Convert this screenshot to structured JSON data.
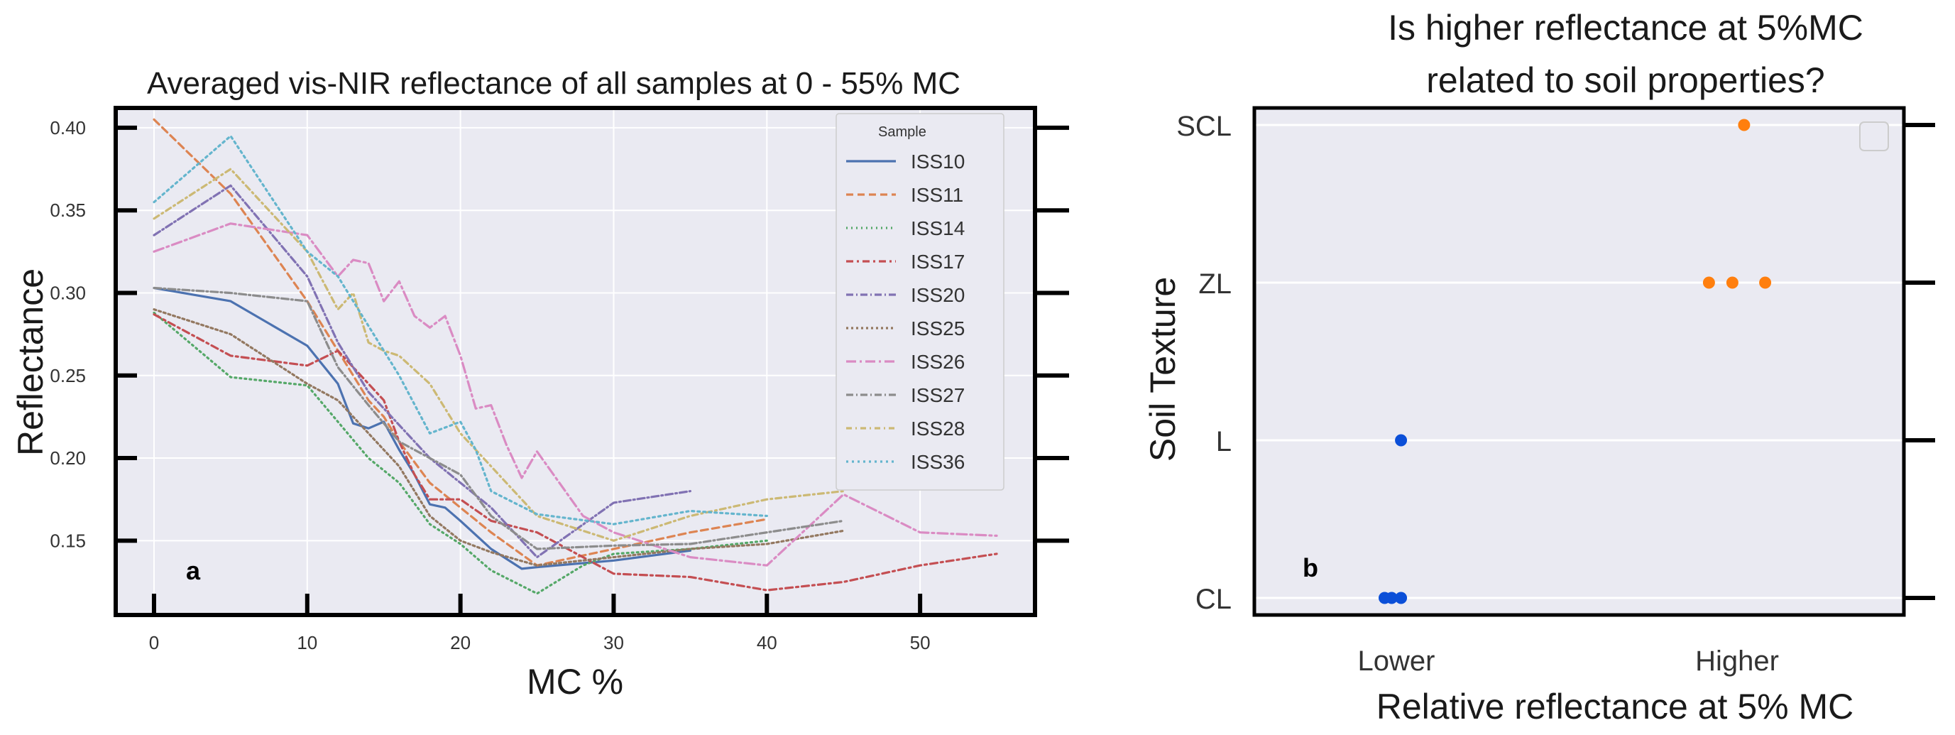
{
  "chart_data": [
    {
      "type": "line",
      "panel_label": "a",
      "title": "Averaged vis-NIR reflectance of all samples at 0 - 55% MC",
      "xlabel": "MC %",
      "ylabel": "Reflectance",
      "xlim": [
        -2.5,
        57.5
      ],
      "ylim": [
        0.105,
        0.412
      ],
      "xticks": [
        0,
        10,
        20,
        30,
        40,
        50
      ],
      "yticks": [
        0.15,
        0.2,
        0.25,
        0.3,
        0.35,
        0.4
      ],
      "ytick_labels": [
        "0.15",
        "0.20",
        "0.25",
        "0.30",
        "0.35",
        "0.40"
      ],
      "grid": true,
      "legend": {
        "title": "Sample",
        "position": "top-right"
      },
      "series": [
        {
          "name": "ISS10",
          "color": "#4c72b0",
          "dash": "solid",
          "x": [
            0,
            5,
            10,
            12,
            13,
            14,
            15,
            16,
            17,
            18,
            19,
            20,
            22,
            24,
            25,
            30,
            35
          ],
          "y": [
            0.303,
            0.295,
            0.268,
            0.245,
            0.221,
            0.218,
            0.222,
            0.205,
            0.19,
            0.172,
            0.17,
            0.162,
            0.145,
            0.133,
            0.134,
            0.138,
            0.144
          ]
        },
        {
          "name": "ISS11",
          "color": "#dd8452",
          "dash": "10,6",
          "x": [
            0,
            5,
            10,
            12,
            14,
            15,
            16,
            18,
            20,
            22,
            25,
            30,
            35,
            40
          ],
          "y": [
            0.405,
            0.36,
            0.295,
            0.265,
            0.235,
            0.225,
            0.21,
            0.185,
            0.17,
            0.155,
            0.135,
            0.145,
            0.155,
            0.163
          ]
        },
        {
          "name": "ISS14",
          "color": "#55a868",
          "dash": "2,5",
          "x": [
            0,
            5,
            10,
            12,
            14,
            16,
            18,
            20,
            22,
            25,
            28,
            30,
            35,
            40
          ],
          "y": [
            0.288,
            0.249,
            0.244,
            0.222,
            0.2,
            0.185,
            0.16,
            0.148,
            0.132,
            0.118,
            0.135,
            0.142,
            0.145,
            0.15
          ]
        },
        {
          "name": "ISS17",
          "color": "#c44e52",
          "dash": "10,5,3,5",
          "x": [
            0,
            5,
            10,
            12,
            13,
            14,
            15,
            16,
            17,
            18,
            20,
            22,
            25,
            30,
            35,
            40,
            45,
            50,
            55
          ],
          "y": [
            0.287,
            0.262,
            0.256,
            0.265,
            0.255,
            0.245,
            0.235,
            0.21,
            0.19,
            0.175,
            0.175,
            0.162,
            0.155,
            0.13,
            0.128,
            0.12,
            0.125,
            0.135,
            0.142
          ]
        },
        {
          "name": "ISS20",
          "color": "#8172b3",
          "dash": "10,4,2,4",
          "x": [
            0,
            5,
            10,
            12,
            14,
            16,
            18,
            20,
            22,
            25,
            30,
            35
          ],
          "y": [
            0.335,
            0.365,
            0.31,
            0.27,
            0.24,
            0.22,
            0.2,
            0.185,
            0.17,
            0.14,
            0.173,
            0.18
          ]
        },
        {
          "name": "ISS25",
          "color": "#937860",
          "dash": "3,4",
          "x": [
            0,
            5,
            10,
            12,
            14,
            16,
            18,
            20,
            22,
            25,
            30,
            35,
            40,
            45
          ],
          "y": [
            0.29,
            0.275,
            0.245,
            0.235,
            0.215,
            0.195,
            0.165,
            0.15,
            0.143,
            0.135,
            0.14,
            0.145,
            0.148,
            0.156
          ]
        },
        {
          "name": "ISS26",
          "color": "#da8bc3",
          "dash": "14,5,3,5",
          "x": [
            0,
            5,
            10,
            12,
            13,
            14,
            15,
            16,
            17,
            18,
            19,
            20,
            21,
            22,
            23,
            24,
            25,
            28,
            30,
            35,
            40,
            45,
            50,
            55
          ],
          "y": [
            0.325,
            0.342,
            0.335,
            0.31,
            0.32,
            0.318,
            0.295,
            0.307,
            0.286,
            0.279,
            0.286,
            0.262,
            0.23,
            0.232,
            0.208,
            0.188,
            0.204,
            0.165,
            0.155,
            0.14,
            0.135,
            0.178,
            0.155,
            0.153
          ]
        },
        {
          "name": "ISS27",
          "color": "#8c8c8c",
          "dash": "10,4,2,4",
          "x": [
            0,
            5,
            10,
            12,
            14,
            16,
            18,
            20,
            22,
            25,
            30,
            35,
            40,
            45
          ],
          "y": [
            0.303,
            0.3,
            0.295,
            0.255,
            0.232,
            0.21,
            0.2,
            0.19,
            0.165,
            0.145,
            0.147,
            0.148,
            0.155,
            0.162
          ]
        },
        {
          "name": "ISS28",
          "color": "#ccb974",
          "dash": "8,5,2,5",
          "x": [
            0,
            5,
            10,
            12,
            13,
            14,
            15,
            16,
            18,
            20,
            22,
            25,
            30,
            35,
            40,
            45
          ],
          "y": [
            0.345,
            0.375,
            0.325,
            0.29,
            0.3,
            0.27,
            0.265,
            0.262,
            0.245,
            0.215,
            0.195,
            0.165,
            0.15,
            0.165,
            0.175,
            0.18
          ]
        },
        {
          "name": "ISS36",
          "color": "#64b5cd",
          "dash": "3,5",
          "x": [
            0,
            5,
            10,
            12,
            14,
            15,
            16,
            18,
            20,
            21,
            22,
            25,
            30,
            35,
            40
          ],
          "y": [
            0.355,
            0.395,
            0.325,
            0.31,
            0.28,
            0.265,
            0.25,
            0.215,
            0.222,
            0.205,
            0.18,
            0.166,
            0.16,
            0.168,
            0.165
          ]
        }
      ]
    },
    {
      "type": "scatter",
      "panel_label": "b",
      "title_lines": [
        "Is higher reflectance at 5%MC",
        "related to soil properties?"
      ],
      "xlabel": "Relative reflectance at 5% MC",
      "ylabel": "Soil Texture",
      "categories_x": [
        "Lower",
        "Higher"
      ],
      "categories_y": [
        "CL",
        "L",
        "ZL",
        "SCL"
      ],
      "grid": true,
      "legend": {
        "position": "top-right",
        "entries": []
      },
      "series": [
        {
          "name": "Lower",
          "color": "#0b4fd8",
          "points": [
            {
              "x": "Lower",
              "y": "CL",
              "jitter": -0.05
            },
            {
              "x": "Lower",
              "y": "CL",
              "jitter": -0.02
            },
            {
              "x": "Lower",
              "y": "CL",
              "jitter": 0.02
            },
            {
              "x": "Lower",
              "y": "L",
              "jitter": 0.02
            }
          ]
        },
        {
          "name": "Higher",
          "color": "#ff7f0e",
          "points": [
            {
              "x": "Higher",
              "y": "SCL",
              "jitter": 0.03
            },
            {
              "x": "Higher",
              "y": "ZL",
              "jitter": -0.12
            },
            {
              "x": "Higher",
              "y": "ZL",
              "jitter": -0.02
            },
            {
              "x": "Higher",
              "y": "ZL",
              "jitter": 0.12
            }
          ]
        }
      ]
    }
  ]
}
